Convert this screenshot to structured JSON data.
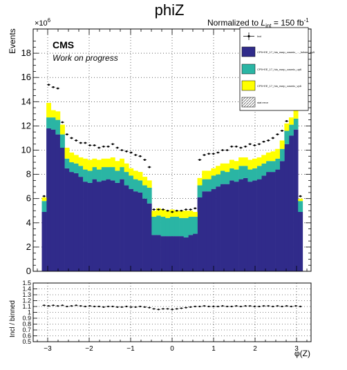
{
  "title": "phiZ",
  "lumi_prefix": "Normalized to ",
  "lumi_symbol": "L",
  "lumi_sub": "int",
  "lumi_value": " = 150 fb",
  "lumi_exp": "-1",
  "cms_label": "CMS",
  "cms_sublabel": "Work on progress",
  "exponent_base": "×10",
  "exponent_power": "6",
  "colors": {
    "cosmic": "#302b8a",
    "up6": "#2ab5a4",
    "vp6": "#ffff00",
    "stat": "#9a9a9a"
  },
  "chart_data": [
    {
      "type": "area",
      "name": "main-stack",
      "stacked": true,
      "title": "phiZ",
      "xlabel": "",
      "ylabel": "Events",
      "y_multiplier": "×10^6",
      "xlim": [
        -3.35,
        3.35
      ],
      "ylim": [
        0,
        20
      ],
      "y_ticks": [
        0,
        2,
        4,
        6,
        8,
        10,
        12,
        14,
        16,
        18
      ],
      "grid": true,
      "legend_position": "top-right",
      "legend": [
        {
          "label": "Incl",
          "style": "points"
        },
        {
          "label": "CP5+EE_17_hla_nsep_cosmic_..._fullsim_cp5",
          "style": "fill",
          "color": "#302b8a"
        },
        {
          "label": "CP5+EE_17_hla_nsep_cosmic_up6",
          "style": "fill",
          "color": "#2ab5a4"
        },
        {
          "label": "CP5+EE_17_hla_nsep_cosmic_vp6",
          "style": "fill",
          "color": "#ffff00"
        },
        {
          "label": "stat error",
          "style": "hatch"
        }
      ],
      "x_bin_edges": [
        -3.142,
        -3.032,
        -2.921,
        -2.811,
        -2.701,
        -2.59,
        -2.48,
        -2.37,
        -2.259,
        -2.149,
        -2.039,
        -1.928,
        -1.818,
        -1.708,
        -1.597,
        -1.487,
        -1.377,
        -1.266,
        -1.156,
        -1.046,
        -0.935,
        -0.825,
        -0.715,
        -0.604,
        -0.494,
        -0.384,
        -0.273,
        -0.163,
        -0.053,
        0.058,
        0.168,
        0.278,
        0.389,
        0.499,
        0.609,
        0.72,
        0.83,
        0.94,
        1.051,
        1.161,
        1.271,
        1.382,
        1.492,
        1.602,
        1.713,
        1.823,
        1.933,
        2.044,
        2.154,
        2.264,
        2.375,
        2.485,
        2.595,
        2.706,
        2.816,
        2.926,
        3.037,
        3.147
      ],
      "series": [
        {
          "name": "CP5+EE_17_hla_nsep_cosmic_..._fullsim_cp5",
          "color": "#302b8a",
          "values": [
            4.9,
            11.8,
            11.7,
            11.3,
            10.2,
            8.5,
            8.2,
            8.1,
            7.8,
            7.4,
            7.3,
            7.6,
            7.4,
            7.5,
            7.6,
            7.5,
            7.3,
            7.6,
            7.1,
            6.8,
            6.6,
            6.5,
            6.0,
            5.6,
            3.0,
            3.0,
            2.9,
            2.9,
            2.9,
            2.9,
            2.9,
            2.8,
            3.0,
            3.1,
            6.1,
            6.6,
            6.6,
            6.8,
            7.0,
            7.2,
            7.2,
            7.5,
            7.4,
            7.6,
            7.7,
            7.4,
            7.5,
            7.6,
            7.9,
            8.2,
            8.2,
            8.4,
            9.1,
            10.5,
            11.2,
            11.7,
            4.9
          ]
        },
        {
          "name": "CP5+EE_17_hla_nsep_cosmic_up6",
          "color": "#2ab5a4",
          "values": [
            0.9,
            0.9,
            1.0,
            1.2,
            1.1,
            0.8,
            0.8,
            0.8,
            0.9,
            1.0,
            1.0,
            1.0,
            1.0,
            1.1,
            1.0,
            1.1,
            1.0,
            1.0,
            1.1,
            1.1,
            1.0,
            1.0,
            1.1,
            1.3,
            1.5,
            1.6,
            1.6,
            1.5,
            1.6,
            1.6,
            1.5,
            1.6,
            1.5,
            1.4,
            1.0,
            1.0,
            1.0,
            1.1,
            1.0,
            1.1,
            1.0,
            1.0,
            1.0,
            1.1,
            1.0,
            1.0,
            1.0,
            1.1,
            1.0,
            0.9,
            0.9,
            0.9,
            1.0,
            1.1,
            0.9,
            0.9,
            0.9
          ]
        },
        {
          "name": "CP5+EE_17_hla_nsep_cosmic_vp6",
          "color": "#ffff00",
          "values": [
            0.3,
            1.2,
            0.6,
            0.7,
            0.8,
            0.9,
            0.8,
            0.7,
            0.7,
            0.9,
            0.9,
            0.7,
            0.8,
            0.7,
            0.7,
            0.8,
            0.8,
            0.7,
            0.7,
            0.6,
            0.7,
            0.7,
            0.7,
            0.6,
            0.5,
            0.6,
            0.6,
            0.6,
            0.6,
            0.5,
            0.6,
            0.6,
            0.5,
            0.4,
            0.6,
            0.7,
            0.7,
            0.6,
            0.7,
            0.6,
            0.7,
            0.7,
            0.7,
            0.7,
            0.7,
            0.8,
            0.8,
            0.7,
            0.7,
            0.7,
            0.8,
            0.8,
            0.7,
            0.6,
            0.6,
            1.4,
            0.2
          ]
        }
      ],
      "incl_points": {
        "name": "Incl",
        "x": [
          -3.087,
          -2.976,
          -2.866,
          -2.756,
          -2.645,
          -2.535,
          -2.425,
          -2.314,
          -2.204,
          -2.094,
          -1.983,
          -1.873,
          -1.763,
          -1.652,
          -1.542,
          -1.432,
          -1.321,
          -1.211,
          -1.101,
          -0.99,
          -0.88,
          -0.77,
          -0.659,
          -0.549,
          -0.439,
          -0.328,
          -0.218,
          -0.108,
          0.003,
          0.113,
          0.223,
          0.334,
          0.444,
          0.554,
          0.665,
          0.775,
          0.885,
          0.996,
          1.106,
          1.216,
          1.327,
          1.437,
          1.547,
          1.658,
          1.768,
          1.878,
          1.989,
          2.099,
          2.209,
          2.32,
          2.43,
          2.54,
          2.651,
          2.761,
          2.871,
          2.982,
          3.092
        ],
        "y": [
          6.2,
          15.4,
          15.2,
          15.1,
          12.3,
          11.3,
          11.0,
          10.8,
          10.6,
          10.6,
          10.4,
          10.4,
          10.2,
          10.3,
          10.3,
          10.5,
          10.2,
          10.0,
          9.9,
          9.8,
          9.6,
          9.5,
          9.2,
          8.6,
          5.1,
          5.1,
          5.1,
          5.0,
          4.9,
          5.0,
          5.0,
          5.1,
          5.1,
          5.2,
          9.2,
          9.6,
          9.7,
          9.7,
          9.8,
          10.0,
          10.0,
          10.3,
          10.3,
          10.2,
          10.3,
          10.5,
          10.4,
          10.5,
          10.7,
          10.8,
          11.0,
          11.3,
          11.6,
          12.4,
          14.1,
          15.3,
          6.2
        ]
      }
    },
    {
      "type": "scatter",
      "name": "ratio",
      "xlabel": "φ(Z)",
      "ylabel": "Incl / binned",
      "xlim": [
        -3.35,
        3.35
      ],
      "ylim": [
        0.5,
        1.5
      ],
      "x_ticks": [
        -3,
        -2,
        -1,
        0,
        1,
        2,
        3
      ],
      "y_ticks": [
        0.5,
        0.6,
        0.7,
        0.8,
        0.9,
        1.0,
        1.1,
        1.2,
        1.3,
        1.4,
        1.5
      ],
      "grid": true,
      "x": [
        -3.087,
        -2.976,
        -2.866,
        -2.756,
        -2.645,
        -2.535,
        -2.425,
        -2.314,
        -2.204,
        -2.094,
        -1.983,
        -1.873,
        -1.763,
        -1.652,
        -1.542,
        -1.432,
        -1.321,
        -1.211,
        -1.101,
        -0.99,
        -0.88,
        -0.77,
        -0.659,
        -0.549,
        -0.439,
        -0.328,
        -0.218,
        -0.108,
        0.003,
        0.113,
        0.223,
        0.334,
        0.444,
        0.554,
        0.665,
        0.775,
        0.885,
        0.996,
        1.106,
        1.216,
        1.327,
        1.437,
        1.547,
        1.658,
        1.768,
        1.878,
        1.989,
        2.099,
        2.209,
        2.32,
        2.43,
        2.54,
        2.651,
        2.761,
        2.871,
        2.982,
        3.092
      ],
      "y": [
        1.12,
        1.11,
        1.12,
        1.11,
        1.12,
        1.1,
        1.11,
        1.12,
        1.11,
        1.1,
        1.11,
        1.1,
        1.1,
        1.09,
        1.1,
        1.1,
        1.09,
        1.09,
        1.1,
        1.09,
        1.09,
        1.1,
        1.09,
        1.08,
        1.06,
        1.05,
        1.06,
        1.06,
        1.05,
        1.06,
        1.07,
        1.08,
        1.09,
        1.1,
        1.1,
        1.11,
        1.1,
        1.1,
        1.1,
        1.11,
        1.1,
        1.1,
        1.11,
        1.1,
        1.11,
        1.11,
        1.1,
        1.1,
        1.11,
        1.11,
        1.1,
        1.11,
        1.1,
        1.11,
        1.1,
        1.11,
        1.1
      ]
    }
  ]
}
